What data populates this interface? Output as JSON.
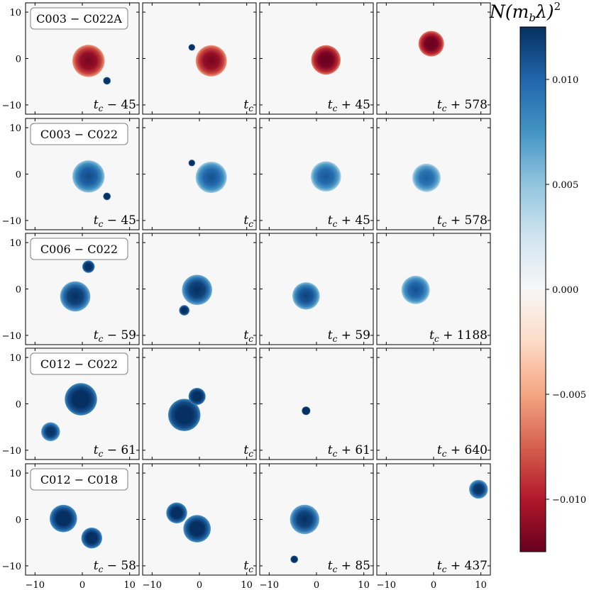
{
  "chart_data": {
    "type": "heatmap",
    "description": "5x4 grid of 2D slices",
    "axis_range": [
      -12,
      12
    ],
    "x_ticks": [
      -10,
      0,
      10
    ],
    "y_ticks": [
      10,
      0,
      -10
    ],
    "colorbar": {
      "title": "N(m_b λ)^2",
      "title_main": "N(m",
      "title_sub": "b",
      "title_mid": "λ)",
      "title_sup": "2",
      "range": [
        -0.0125,
        0.0125
      ],
      "ticks": [
        0.01,
        0.005,
        0.0,
        -0.005,
        -0.01
      ],
      "tick_labels": [
        "0.010",
        "0.005",
        "0.000",
        "−0.005",
        "−0.010"
      ],
      "cmap": "RdBu"
    },
    "rows": [
      {
        "label": "C003 − C022A",
        "panels": [
          {
            "time": "t_c − 45",
            "tsuffix": " − 45",
            "blobs": [
              {
                "x": 1.3,
                "y": -0.5,
                "r": 3.4,
                "v": -0.0085
              },
              {
                "x": 5.2,
                "y": -4.8,
                "r": 0.8,
                "v": 0.012
              }
            ]
          },
          {
            "time": "t_c",
            "tsuffix": "",
            "blobs": [
              {
                "x": 2.5,
                "y": -0.5,
                "r": 3.3,
                "v": -0.0085
              },
              {
                "x": -1.6,
                "y": 2.4,
                "r": 0.7,
                "v": 0.012
              }
            ]
          },
          {
            "time": "t_c + 45",
            "tsuffix": " + 45",
            "blobs": [
              {
                "x": 2.0,
                "y": -0.3,
                "r": 3.1,
                "v": -0.0095
              }
            ]
          },
          {
            "time": "t_c + 578",
            "tsuffix": " + 578",
            "blobs": [
              {
                "x": -0.5,
                "y": 3.2,
                "r": 2.7,
                "v": -0.0095
              }
            ]
          }
        ]
      },
      {
        "label": "C003 − C022",
        "panels": [
          {
            "time": "t_c − 45",
            "tsuffix": " − 45",
            "blobs": [
              {
                "x": 1.3,
                "y": -0.5,
                "r": 3.4,
                "v": 0.0078
              },
              {
                "x": 5.2,
                "y": -4.8,
                "r": 0.8,
                "v": 0.012
              }
            ]
          },
          {
            "time": "t_c",
            "tsuffix": "",
            "blobs": [
              {
                "x": 2.5,
                "y": -0.7,
                "r": 3.3,
                "v": 0.0075
              },
              {
                "x": -1.6,
                "y": 2.4,
                "r": 0.7,
                "v": 0.012
              }
            ]
          },
          {
            "time": "t_c + 45",
            "tsuffix": " + 45",
            "blobs": [
              {
                "x": 2.0,
                "y": -0.5,
                "r": 3.2,
                "v": 0.0072
              }
            ]
          },
          {
            "time": "t_c + 578",
            "tsuffix": " + 578",
            "blobs": [
              {
                "x": -1.5,
                "y": -0.8,
                "r": 3.0,
                "v": 0.0068
              }
            ]
          }
        ]
      },
      {
        "label": "C006 − C022",
        "panels": [
          {
            "time": "t_c − 59",
            "tsuffix": " − 59",
            "blobs": [
              {
                "x": -1.5,
                "y": -1.6,
                "r": 3.2,
                "v": 0.0092
              },
              {
                "x": 1.3,
                "y": 4.8,
                "r": 1.3,
                "v": 0.011
              }
            ]
          },
          {
            "time": "t_c",
            "tsuffix": "",
            "blobs": [
              {
                "x": -0.5,
                "y": -0.2,
                "r": 3.2,
                "v": 0.0092
              },
              {
                "x": -3.2,
                "y": -4.6,
                "r": 1.1,
                "v": 0.011
              }
            ]
          },
          {
            "time": "t_c + 59",
            "tsuffix": " + 59",
            "blobs": [
              {
                "x": -2.2,
                "y": -1.5,
                "r": 2.9,
                "v": 0.0082
              }
            ]
          },
          {
            "time": "t_c + 1188",
            "tsuffix": " + 1188",
            "blobs": [
              {
                "x": -3.8,
                "y": -0.2,
                "r": 3.0,
                "v": 0.0075
              }
            ]
          }
        ]
      },
      {
        "label": "C012 − C022",
        "panels": [
          {
            "time": "t_c − 61",
            "tsuffix": " − 61",
            "blobs": [
              {
                "x": -0.3,
                "y": 1.0,
                "r": 3.4,
                "v": 0.011
              },
              {
                "x": -6.7,
                "y": -6.0,
                "r": 2.0,
                "v": 0.0095
              }
            ]
          },
          {
            "time": "t_c",
            "tsuffix": "",
            "blobs": [
              {
                "x": -3.2,
                "y": -2.4,
                "r": 3.4,
                "v": 0.0112
              },
              {
                "x": -0.5,
                "y": 1.6,
                "r": 1.8,
                "v": 0.0112
              }
            ]
          },
          {
            "time": "t_c + 61",
            "tsuffix": " + 61",
            "blobs": [
              {
                "x": -2.2,
                "y": -1.5,
                "r": 0.9,
                "v": 0.0125
              }
            ]
          },
          {
            "time": "t_c + 640",
            "tsuffix": " + 640",
            "blobs": []
          }
        ]
      },
      {
        "label": "C012 − C018",
        "panels": [
          {
            "time": "t_c − 58",
            "tsuffix": " − 58",
            "blobs": [
              {
                "x": -4.0,
                "y": 0.2,
                "r": 2.9,
                "v": 0.0105
              },
              {
                "x": 2.0,
                "y": -4.0,
                "r": 2.2,
                "v": 0.0105
              }
            ]
          },
          {
            "time": "t_c",
            "tsuffix": "",
            "blobs": [
              {
                "x": -4.8,
                "y": 1.4,
                "r": 2.2,
                "v": 0.0105
              },
              {
                "x": -0.5,
                "y": -2.0,
                "r": 2.9,
                "v": 0.0105
              }
            ]
          },
          {
            "time": "t_c + 85",
            "tsuffix": " + 85",
            "blobs": [
              {
                "x": -2.5,
                "y": 0.0,
                "r": 3.1,
                "v": 0.0092
              },
              {
                "x": -4.7,
                "y": -8.6,
                "r": 0.8,
                "v": 0.012
              }
            ]
          },
          {
            "time": "t_c + 437",
            "tsuffix": " + 437",
            "blobs": [
              {
                "x": 9.5,
                "y": 6.5,
                "r": 2.0,
                "v": 0.0095
              }
            ]
          }
        ]
      }
    ]
  }
}
